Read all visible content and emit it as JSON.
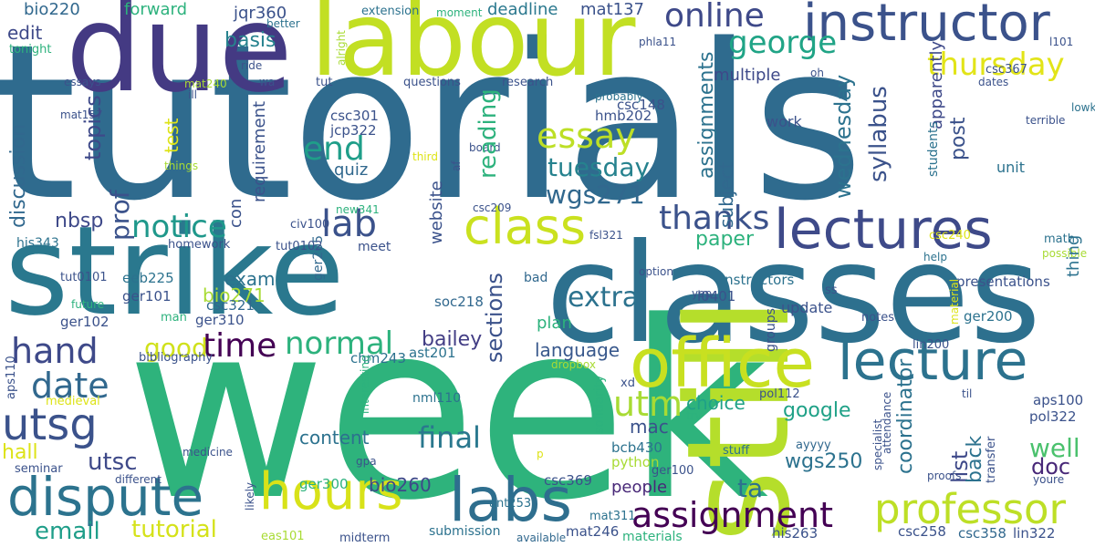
{
  "words": [
    {
      "text": "tutorials",
      "color": "#2f6b8e"
    },
    {
      "text": "week",
      "color": "#2eb37c"
    },
    {
      "text": "strike",
      "color": "#2a788e"
    },
    {
      "text": "classes",
      "color": "#2d708e"
    },
    {
      "text": "still",
      "color": "#b5de2b"
    },
    {
      "text": "due",
      "color": "#443a83"
    },
    {
      "text": "labour",
      "color": "#c2df23"
    },
    {
      "text": "instructor",
      "color": "#3b528b"
    },
    {
      "text": "lectures",
      "color": "#3e4a89"
    },
    {
      "text": "lecture",
      "color": "#2c728e"
    },
    {
      "text": "office",
      "color": "#c8e020"
    },
    {
      "text": "dispute",
      "color": "#2c738e"
    },
    {
      "text": "hours",
      "color": "#d8e219"
    },
    {
      "text": "labs",
      "color": "#2e6e8e"
    },
    {
      "text": "class",
      "color": "#cae11f"
    },
    {
      "text": "utsg",
      "color": "#3b528b"
    },
    {
      "text": "professor",
      "color": "#bddf26"
    },
    {
      "text": "assignment",
      "color": "#440154"
    },
    {
      "text": "online",
      "color": "#3e4989"
    },
    {
      "text": "george",
      "color": "#20a486"
    },
    {
      "text": "thursday",
      "color": "#e2e418"
    },
    {
      "text": "notice",
      "color": "#1f988b"
    },
    {
      "text": "essay",
      "color": "#bddf26"
    },
    {
      "text": "hand",
      "color": "#3e4989"
    },
    {
      "text": "lab",
      "color": "#3b528b"
    },
    {
      "text": "end",
      "color": "#1f9e89"
    },
    {
      "text": "thanks",
      "color": "#3b528b"
    },
    {
      "text": "time",
      "color": "#440154"
    },
    {
      "text": "normal",
      "color": "#2db27d"
    },
    {
      "text": "date",
      "color": "#31688e"
    },
    {
      "text": "good",
      "color": "#d0e11c"
    },
    {
      "text": "utm",
      "color": "#a8db34"
    },
    {
      "text": "tuesday",
      "color": "#26828e"
    },
    {
      "text": "wgs271",
      "color": "#31688e"
    },
    {
      "text": "extra",
      "color": "#2c728e"
    },
    {
      "text": "final",
      "color": "#2a788e"
    },
    {
      "text": "tutorial",
      "color": "#d5e21a"
    },
    {
      "text": "email",
      "color": "#1f9e89"
    },
    {
      "text": "utsc",
      "color": "#3e4989"
    },
    {
      "text": "hall",
      "color": "#dde318"
    },
    {
      "text": "bailey",
      "color": "#433e85"
    },
    {
      "text": "language",
      "color": "#38588c"
    },
    {
      "text": "content",
      "color": "#2c728e"
    },
    {
      "text": "choice",
      "color": "#1fa187"
    },
    {
      "text": "google",
      "color": "#1fa187"
    },
    {
      "text": "well",
      "color": "#4ac16d"
    },
    {
      "text": "doc",
      "color": "#482878"
    },
    {
      "text": "ta",
      "color": "#2c728e"
    },
    {
      "text": "wgs250",
      "color": "#2c728e"
    },
    {
      "text": "mac",
      "color": "#3b528b"
    },
    {
      "text": "bio260",
      "color": "#3e4989"
    },
    {
      "text": "people",
      "color": "#482878"
    },
    {
      "text": "paper",
      "color": "#2db27d"
    },
    {
      "text": "exam",
      "color": "#2c728e"
    },
    {
      "text": "bio271",
      "color": "#a8db34"
    },
    {
      "text": "nbsp",
      "color": "#3e4989"
    },
    {
      "text": "basis",
      "color": "#26828e"
    },
    {
      "text": "edit",
      "color": "#3e4989"
    },
    {
      "text": "bio220",
      "color": "#31688e"
    },
    {
      "text": "forward",
      "color": "#2db27d"
    },
    {
      "text": "jqr360",
      "color": "#3b528b"
    },
    {
      "text": "deadline",
      "color": "#2a788e"
    },
    {
      "text": "mat137",
      "color": "#3b528b"
    },
    {
      "text": "multiple",
      "color": "#3e4989"
    },
    {
      "text": "quiz",
      "color": "#31688e"
    },
    {
      "text": "csc301",
      "color": "#3b528b"
    },
    {
      "text": "jcp322",
      "color": "#3b528b"
    },
    {
      "text": "hmb202",
      "color": "#3b528b"
    },
    {
      "text": "csc148",
      "color": "#3b528b"
    },
    {
      "text": "work",
      "color": "#3b528b"
    },
    {
      "text": "unit",
      "color": "#2c728e"
    },
    {
      "text": "update",
      "color": "#3b528b"
    },
    {
      "text": "instructors",
      "color": "#2c728e"
    },
    {
      "text": "l0401",
      "color": "#3b528b"
    },
    {
      "text": "plan",
      "color": "#2db27d"
    },
    {
      "text": "bad",
      "color": "#31688e"
    },
    {
      "text": "presentations",
      "color": "#3b528b"
    },
    {
      "text": "eeb225",
      "color": "#2c728e"
    },
    {
      "text": "ger101",
      "color": "#3b528b"
    },
    {
      "text": "ger205",
      "color": "#31688e"
    },
    {
      "text": "ger102",
      "color": "#3b528b"
    },
    {
      "text": "ger310",
      "color": "#3b528b"
    },
    {
      "text": "csc321",
      "color": "#31688e"
    },
    {
      "text": "soc218",
      "color": "#31688e"
    },
    {
      "text": "ast201",
      "color": "#2c728e"
    },
    {
      "text": "chm243",
      "color": "#2c728e"
    },
    {
      "text": "ger200",
      "color": "#2c728e"
    },
    {
      "text": "lin200",
      "color": "#3b528b"
    },
    {
      "text": "nml110",
      "color": "#2c728e"
    },
    {
      "text": "aps100",
      "color": "#3b528b"
    },
    {
      "text": "pol322",
      "color": "#3b528b"
    },
    {
      "text": "pol112",
      "color": "#3b528b"
    },
    {
      "text": "bcb430",
      "color": "#2c728e"
    },
    {
      "text": "python",
      "color": "#a8db34"
    },
    {
      "text": "ger100",
      "color": "#3b528b"
    },
    {
      "text": "csc369",
      "color": "#3b528b"
    },
    {
      "text": "ger300",
      "color": "#2db27d"
    },
    {
      "text": "ant253",
      "color": "#2c728e"
    },
    {
      "text": "mat246",
      "color": "#3b528b"
    },
    {
      "text": "mat311",
      "color": "#2c728e"
    },
    {
      "text": "csc258",
      "color": "#3b528b"
    },
    {
      "text": "csc358",
      "color": "#31688e"
    },
    {
      "text": "lin322",
      "color": "#3b528b"
    },
    {
      "text": "his263",
      "color": "#3b528b"
    },
    {
      "text": "materials",
      "color": "#2db27d"
    },
    {
      "text": "submission",
      "color": "#2c728e"
    },
    {
      "text": "available",
      "color": "#31688e"
    },
    {
      "text": "midterm",
      "color": "#3b528b"
    },
    {
      "text": "eas101",
      "color": "#a8db34"
    },
    {
      "text": "different",
      "color": "#3b528b"
    },
    {
      "text": "seminar",
      "color": "#3b528b"
    },
    {
      "text": "medieval",
      "color": "#dde318"
    },
    {
      "text": "bibliography",
      "color": "#3b528b"
    },
    {
      "text": "homework",
      "color": "#3b528b"
    },
    {
      "text": "tut0102",
      "color": "#3b528b"
    },
    {
      "text": "his343",
      "color": "#2c728e"
    },
    {
      "text": "new341",
      "color": "#2db27d"
    },
    {
      "text": "civ100",
      "color": "#3b528b"
    },
    {
      "text": "meet",
      "color": "#3b528b"
    },
    {
      "text": "fsl321",
      "color": "#3b528b"
    },
    {
      "text": "csc240",
      "color": "#dde318"
    },
    {
      "text": "tut0101",
      "color": "#3b528b"
    },
    {
      "text": "future",
      "color": "#2db27d"
    },
    {
      "text": "man",
      "color": "#2db27d"
    },
    {
      "text": "ss",
      "color": "#3b528b"
    },
    {
      "text": "notes",
      "color": "#3b528b"
    },
    {
      "text": "til",
      "color": "#3b528b"
    },
    {
      "text": "yep",
      "color": "#3b528b"
    },
    {
      "text": "option",
      "color": "#3b528b"
    },
    {
      "text": "help",
      "color": "#2c728e"
    },
    {
      "text": "possible",
      "color": "#a8db34"
    },
    {
      "text": "math",
      "color": "#2c728e"
    },
    {
      "text": "try",
      "color": "#2db27d"
    },
    {
      "text": "dropbox",
      "color": "#a8db34"
    },
    {
      "text": "xd",
      "color": "#3b528b"
    },
    {
      "text": "p",
      "color": "#dde318"
    },
    {
      "text": "gpa",
      "color": "#3b528b"
    },
    {
      "text": "ayyyy",
      "color": "#31688e"
    },
    {
      "text": "stuff",
      "color": "#2c728e"
    },
    {
      "text": "proofs",
      "color": "#3b528b"
    },
    {
      "text": "youre",
      "color": "#3b528b"
    },
    {
      "text": "medicine",
      "color": "#3b528b"
    },
    {
      "text": "tut",
      "color": "#3b528b"
    },
    {
      "text": "questions",
      "color": "#3b528b"
    },
    {
      "text": "research",
      "color": "#3b528b"
    },
    {
      "text": "extension",
      "color": "#2c728e"
    },
    {
      "text": "moment",
      "color": "#2db27d"
    },
    {
      "text": "better",
      "color": "#2c728e"
    },
    {
      "text": "tonight",
      "color": "#2db27d"
    },
    {
      "text": "essays",
      "color": "#3b528b"
    },
    {
      "text": "mat157",
      "color": "#3b528b"
    },
    {
      "text": "mat240",
      "color": "#a8db34"
    },
    {
      "text": "ill",
      "color": "#3b528b"
    },
    {
      "text": "wa",
      "color": "#3b528b"
    },
    {
      "text": "ride",
      "color": "#3b528b"
    },
    {
      "text": "phla11",
      "color": "#3b528b"
    },
    {
      "text": "l101",
      "color": "#3b528b"
    },
    {
      "text": "csc367",
      "color": "#3b528b"
    },
    {
      "text": "dates",
      "color": "#3b528b"
    },
    {
      "text": "terrible",
      "color": "#3b528b"
    },
    {
      "text": "lowkey",
      "color": "#2c728e"
    },
    {
      "text": "oh",
      "color": "#3b528b"
    },
    {
      "text": "probably",
      "color": "#2c728e"
    },
    {
      "text": "third",
      "color": "#dde318"
    },
    {
      "text": "af",
      "color": "#3b528b"
    },
    {
      "text": "board",
      "color": "#3b528b"
    },
    {
      "text": "csc209",
      "color": "#3b528b"
    },
    {
      "text": "things",
      "color": "#a8db34"
    },
    {
      "text": "test",
      "color": "#dde318"
    },
    {
      "text": "topics",
      "color": "#3e4989"
    },
    {
      "text": "prof",
      "color": "#3b528b"
    },
    {
      "text": "discussion",
      "color": "#31688e"
    },
    {
      "text": "website",
      "color": "#3b528b"
    },
    {
      "text": "con",
      "color": "#3b528b"
    },
    {
      "text": "requirement",
      "color": "#3b528b"
    },
    {
      "text": "reading",
      "color": "#2db27d"
    },
    {
      "text": "sections",
      "color": "#3b528b"
    },
    {
      "text": "assignments",
      "color": "#2c728e"
    },
    {
      "text": "wednesday",
      "color": "#2c728e"
    },
    {
      "text": "syllabus",
      "color": "#3b528b"
    },
    {
      "text": "subject",
      "color": "#31688e"
    },
    {
      "text": "apparently",
      "color": "#3e4989"
    },
    {
      "text": "post",
      "color": "#3b528b"
    },
    {
      "text": "students",
      "color": "#2c728e"
    },
    {
      "text": "thing",
      "color": "#2c728e"
    },
    {
      "text": "coordinator",
      "color": "#2c728e"
    },
    {
      "text": "list",
      "color": "#3e4989"
    },
    {
      "text": "back",
      "color": "#2c728e"
    },
    {
      "text": "groups",
      "color": "#3b528b"
    },
    {
      "text": "solidarity",
      "color": "#2db27d"
    },
    {
      "text": "likely",
      "color": "#3b528b"
    },
    {
      "text": "interesting",
      "color": "#2db27d"
    },
    {
      "text": "aps110",
      "color": "#3b528b"
    },
    {
      "text": "specialist",
      "color": "#3b528b"
    },
    {
      "text": "attendance",
      "color": "#3b528b"
    },
    {
      "text": "transfer",
      "color": "#3b528b"
    },
    {
      "text": "material",
      "color": "#dde318"
    },
    {
      "text": "alright",
      "color": "#a8db34"
    },
    {
      "text": "fingers",
      "color": "#3b528b"
    }
  ]
}
